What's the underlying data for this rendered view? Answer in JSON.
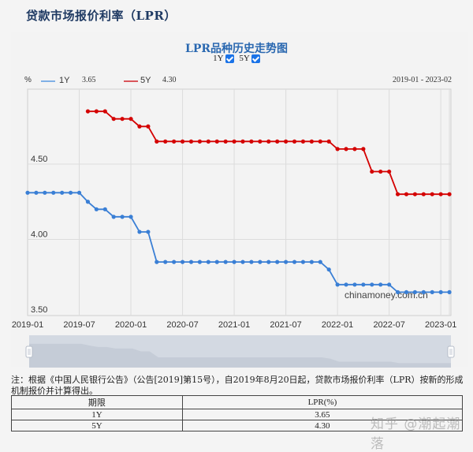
{
  "page": {
    "title": "贷款市场报价利率（LPR）"
  },
  "chart": {
    "title": "LPR品种历史走势图",
    "toggles": [
      {
        "label": "1Y",
        "checked": true
      },
      {
        "label": "5Y",
        "checked": true
      }
    ],
    "unit": "%",
    "legend": [
      {
        "name": "1Y",
        "latest": "3.65",
        "color": "#3a7fd5"
      },
      {
        "name": "5Y",
        "latest": "4.30",
        "color": "#d40000"
      }
    ],
    "date_range": "2019-01 - 2023-02",
    "watermark": "chinamoney.com.cn",
    "y_ticks": [
      "4.50",
      "4.00",
      "3.50"
    ],
    "x_ticks": [
      "2019-01",
      "2019-07",
      "2020-01",
      "2020-07",
      "2021-01",
      "2021-07",
      "2022-01",
      "2022-07",
      "2023-01"
    ]
  },
  "chart_data": {
    "type": "line",
    "title": "LPR品种历史走势图",
    "xlabel": "",
    "ylabel": "%",
    "ylim": [
      3.5,
      5.0
    ],
    "grid": true,
    "legend_position": "top-left",
    "x": [
      "2019-01",
      "2019-02",
      "2019-03",
      "2019-04",
      "2019-05",
      "2019-06",
      "2019-07",
      "2019-08",
      "2019-09",
      "2019-10",
      "2019-11",
      "2019-12",
      "2020-01",
      "2020-02",
      "2020-03",
      "2020-04",
      "2020-05",
      "2020-06",
      "2020-07",
      "2020-08",
      "2020-09",
      "2020-10",
      "2020-11",
      "2020-12",
      "2021-01",
      "2021-02",
      "2021-03",
      "2021-04",
      "2021-05",
      "2021-06",
      "2021-07",
      "2021-08",
      "2021-09",
      "2021-10",
      "2021-11",
      "2021-12",
      "2022-01",
      "2022-02",
      "2022-03",
      "2022-04",
      "2022-05",
      "2022-06",
      "2022-07",
      "2022-08",
      "2022-09",
      "2022-10",
      "2022-11",
      "2022-12",
      "2023-01",
      "2023-02"
    ],
    "series": [
      {
        "name": "1Y",
        "color": "#3a7fd5",
        "values": [
          4.31,
          4.31,
          4.31,
          4.31,
          4.31,
          4.31,
          4.31,
          4.25,
          4.2,
          4.2,
          4.15,
          4.15,
          4.15,
          4.05,
          4.05,
          3.85,
          3.85,
          3.85,
          3.85,
          3.85,
          3.85,
          3.85,
          3.85,
          3.85,
          3.85,
          3.85,
          3.85,
          3.85,
          3.85,
          3.85,
          3.85,
          3.85,
          3.85,
          3.85,
          3.85,
          3.8,
          3.7,
          3.7,
          3.7,
          3.7,
          3.7,
          3.7,
          3.7,
          3.65,
          3.65,
          3.65,
          3.65,
          3.65,
          3.65,
          3.65
        ]
      },
      {
        "name": "5Y",
        "color": "#d40000",
        "values": [
          null,
          null,
          null,
          null,
          null,
          null,
          null,
          4.85,
          4.85,
          4.85,
          4.8,
          4.8,
          4.8,
          4.75,
          4.75,
          4.65,
          4.65,
          4.65,
          4.65,
          4.65,
          4.65,
          4.65,
          4.65,
          4.65,
          4.65,
          4.65,
          4.65,
          4.65,
          4.65,
          4.65,
          4.65,
          4.65,
          4.65,
          4.65,
          4.65,
          4.65,
          4.6,
          4.6,
          4.6,
          4.6,
          4.45,
          4.45,
          4.45,
          4.3,
          4.3,
          4.3,
          4.3,
          4.3,
          4.3,
          4.3
        ]
      }
    ]
  },
  "note": "注：根据《中国人民银行公告》（公告[2019]第15号），自2019年8月20日起，贷款市场报价利率（LPR）按新的形成机制报价并计算得出。",
  "table": {
    "headers": [
      "期限",
      "LPR(%)"
    ],
    "rows": [
      [
        "1Y",
        "3.65"
      ],
      [
        "5Y",
        "4.30"
      ]
    ]
  },
  "watermark_site": "知乎 @潮起潮落"
}
